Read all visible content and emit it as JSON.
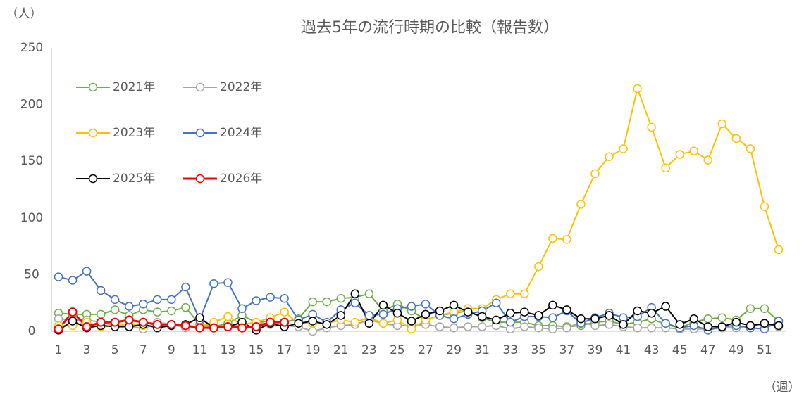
{
  "chart_data": {
    "type": "line",
    "title": "過去5年の流行時期の比較（報告数）",
    "y_label": "（人）",
    "x_label": "（週）",
    "categories": [
      "1",
      null,
      "3",
      null,
      "5",
      null,
      "7",
      null,
      "9",
      null,
      "11",
      null,
      "13",
      null,
      "15",
      null,
      "17",
      null,
      "19",
      null,
      "21",
      null,
      "23",
      null,
      "25",
      null,
      "27",
      null,
      "29",
      null,
      "31",
      null,
      "33",
      null,
      "35",
      null,
      "37",
      null,
      "39",
      null,
      "41",
      null,
      "43",
      null,
      "45",
      null,
      "47",
      null,
      "49",
      null,
      "51",
      null
    ],
    "ylim": [
      0,
      250
    ],
    "yticks": [
      0,
      50,
      100,
      150,
      200,
      250
    ],
    "grid": false,
    "legend": "upper left",
    "series": [
      {
        "name": "2021年",
        "color": "#70ad47",
        "values": [
          16,
          15,
          15,
          15,
          19,
          14,
          19,
          17,
          18,
          21,
          6,
          4,
          7,
          14,
          8,
          9,
          8,
          11,
          26,
          26,
          29,
          30,
          33,
          18,
          24,
          18,
          10,
          14,
          16,
          18,
          12,
          8,
          8,
          8,
          5,
          5,
          4,
          5,
          8,
          9,
          6,
          8,
          11,
          6,
          3,
          8,
          11,
          12,
          10,
          20,
          20,
          9
        ]
      },
      {
        "name": "2022年",
        "color": "#a5a5a5",
        "values": [
          11,
          10,
          10,
          8,
          5,
          5,
          2,
          8,
          6,
          3,
          4,
          3,
          4,
          6,
          8,
          6,
          5,
          4,
          0,
          3,
          5,
          6,
          10,
          7,
          5,
          5,
          6,
          4,
          3,
          4,
          4,
          5,
          2,
          4,
          3,
          2,
          3,
          8,
          5,
          6,
          4,
          3,
          3,
          3,
          2,
          2,
          2,
          3,
          3,
          5,
          6,
          4
        ]
      },
      {
        "name": "2023年",
        "color": "#ffc000",
        "values": [
          5,
          5,
          8,
          4,
          5,
          6,
          5,
          5,
          6,
          5,
          4,
          8,
          13,
          6,
          8,
          12,
          17,
          7,
          7,
          7,
          10,
          8,
          12,
          7,
          10,
          2,
          10,
          14,
          17,
          20,
          20,
          28,
          33,
          33,
          57,
          82,
          81,
          112,
          139,
          154,
          161,
          214,
          180,
          144,
          156,
          159,
          151,
          183,
          170,
          161,
          110,
          72
        ]
      },
      {
        "name": "2024年",
        "color": "#4472c4",
        "values": [
          48,
          45,
          53,
          36,
          28,
          22,
          24,
          28,
          28,
          39,
          10,
          42,
          43,
          20,
          27,
          30,
          29,
          10,
          15,
          8,
          19,
          25,
          14,
          15,
          20,
          22,
          24,
          14,
          11,
          15,
          18,
          25,
          8,
          13,
          13,
          12,
          18,
          7,
          12,
          16,
          12,
          13,
          21,
          7,
          3,
          5,
          1,
          4,
          5,
          3,
          2,
          9
        ]
      },
      {
        "name": "2025年",
        "color": "#000000",
        "values": [
          1,
          9,
          3,
          5,
          4,
          4,
          6,
          3,
          5,
          6,
          12,
          3,
          4,
          8,
          1,
          7,
          4,
          7,
          9,
          6,
          14,
          33,
          7,
          23,
          16,
          9,
          15,
          18,
          23,
          17,
          13,
          10,
          16,
          17,
          14,
          23,
          19,
          11,
          11,
          14,
          6,
          18,
          16,
          22,
          6,
          11,
          4,
          4,
          8,
          5,
          7,
          5
        ]
      },
      {
        "name": "2026年",
        "color": "#ff0000",
        "values": [
          2,
          17,
          4,
          8,
          8,
          10,
          8,
          6,
          6,
          5,
          3,
          3,
          4,
          3,
          4,
          8,
          8,
          null,
          null,
          null,
          null,
          null,
          null,
          null,
          null,
          null,
          null,
          null,
          null,
          null,
          null,
          null,
          null,
          null,
          null,
          null,
          null,
          null,
          null,
          null,
          null,
          null,
          null,
          null,
          null,
          null,
          null,
          null,
          null,
          null,
          null,
          null
        ]
      }
    ]
  }
}
